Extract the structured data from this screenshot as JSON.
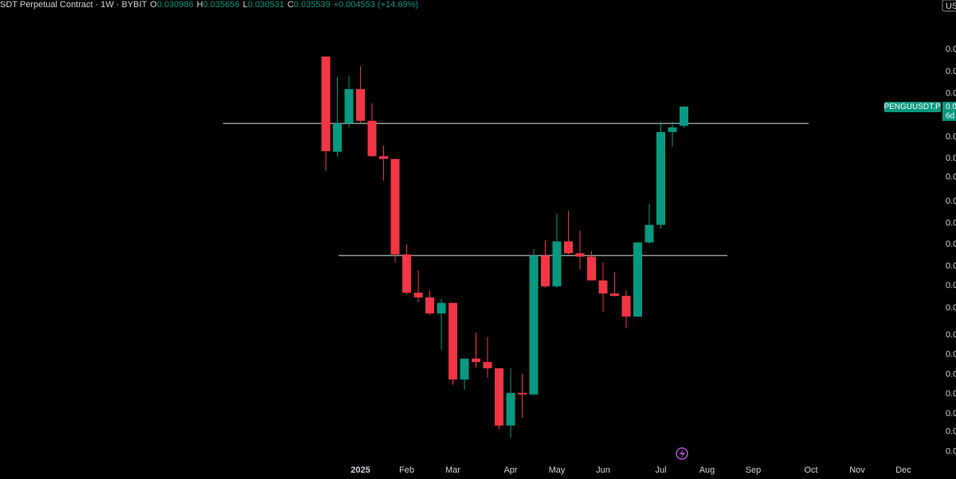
{
  "chart_data": {
    "type": "candlestick",
    "title": "SDT Perpetual Contract · 1W · BYBIT",
    "ohlc_labels": [
      "O",
      "H",
      "L",
      "C"
    ],
    "change_label": "+0.004553 (+14.69%)",
    "currency": "US",
    "symbol": "PENGUUSDT.P",
    "price_label": "0.0",
    "countdown": "6d",
    "log_scale": true,
    "up_color": "#089981",
    "down_color": "#f23645",
    "line_color": "#e0e0e0",
    "categories": [
      null,
      null,
      null,
      "2025",
      null,
      null,
      null,
      "Feb",
      null,
      null,
      null,
      "Mar",
      null,
      null,
      null,
      null,
      "Apr",
      null,
      null,
      null,
      "May",
      null,
      null,
      null,
      "Jun",
      null,
      null,
      null,
      null,
      "Jul",
      null,
      null,
      null,
      "Aug",
      null,
      null,
      null,
      "Sep",
      null,
      null,
      null,
      null,
      "Oct",
      null,
      null,
      null,
      "Nov",
      null,
      null,
      null,
      "Dec"
    ],
    "open": [
      0.0509,
      0.0257,
      0.0315,
      0.0403,
      0.0321,
      0.0249,
      0.0244,
      0.0123,
      0.00934,
      0.00903,
      0.00805,
      0.00868,
      0.00501,
      0.00582,
      0.00568,
      0.00543,
      0.0036,
      0.00455,
      0.0045,
      0.0122,
      0.00978,
      0.0135,
      0.0124,
      0.0121,
      0.0102,
      0.00929,
      0.00913,
      0.00787,
      0.0134,
      0.0152,
      0.0296,
      0.030986,
      null,
      null,
      null,
      null,
      null,
      null,
      null,
      null,
      null,
      null,
      null,
      null,
      null,
      null,
      null,
      null,
      null,
      null,
      null
    ],
    "high": [
      0.0509,
      0.0439,
      0.0444,
      0.0475,
      0.0364,
      0.0269,
      0.0244,
      0.0132,
      0.01097,
      0.0095,
      0.00892,
      0.00868,
      0.00582,
      0.00702,
      0.00679,
      0.00543,
      0.00543,
      0.00521,
      0.0128,
      0.0136,
      0.0165,
      0.0168,
      0.0146,
      0.0126,
      0.0116,
      0.01084,
      0.0095,
      0.0134,
      0.0177,
      0.0319,
      0.0319,
      0.035656,
      null,
      null,
      null,
      null,
      null,
      null,
      null,
      null,
      null,
      null,
      null,
      null,
      null,
      null,
      null,
      null,
      null,
      null,
      null
    ],
    "low": [
      0.0224,
      0.0248,
      0.0306,
      0.0315,
      0.0248,
      0.0209,
      0.0116,
      0.00923,
      0.00872,
      0.00796,
      0.0062,
      0.00482,
      0.00465,
      0.00546,
      0.00507,
      0.0035,
      0.0033,
      0.00381,
      0.00447,
      0.00967,
      0.00967,
      0.0123,
      0.011,
      0.0102,
      0.00815,
      0.00908,
      0.00723,
      0.00787,
      0.0133,
      0.0148,
      0.0267,
      0.030531,
      null,
      null,
      null,
      null,
      null,
      null,
      null,
      null,
      null,
      null,
      null,
      null,
      null,
      null,
      null,
      null,
      null,
      null,
      null
    ],
    "close": [
      0.0258,
      0.0315,
      0.0403,
      0.0321,
      0.0249,
      0.0244,
      0.0123,
      0.00934,
      0.00903,
      0.00805,
      0.00868,
      0.00501,
      0.00582,
      0.00568,
      0.00543,
      0.0036,
      0.00455,
      0.0045,
      0.0122,
      0.00978,
      0.0135,
      0.0124,
      0.0121,
      0.0102,
      0.00929,
      0.00913,
      0.00787,
      0.0134,
      0.0152,
      0.0296,
      0.0306,
      0.035539,
      null,
      null,
      null,
      null,
      null,
      null,
      null,
      null,
      null,
      null,
      null,
      null,
      null,
      null,
      null,
      null,
      null,
      null,
      null
    ],
    "hlines": [
      0.0315,
      0.0122
    ],
    "ylim": [
      0.00278,
      0.0764
    ],
    "yticks": [
      {
        "value": 0.0536,
        "label": "0.0"
      },
      {
        "value": 0.0457,
        "label": "0.0"
      },
      {
        "value": 0.039,
        "label": "0.0"
      },
      {
        "value": 0.0286,
        "label": "0.0"
      },
      {
        "value": 0.0245,
        "label": "0.0"
      },
      {
        "value": 0.0214,
        "label": "0.0"
      },
      {
        "value": 0.018,
        "label": "0.0"
      },
      {
        "value": 0.0154,
        "label": "0.0"
      },
      {
        "value": 0.0132,
        "label": "0.0"
      },
      {
        "value": 0.0113,
        "label": "0.0"
      },
      {
        "value": 0.00983,
        "label": "0.0"
      },
      {
        "value": 0.00838,
        "label": "0.0"
      },
      {
        "value": 0.0069,
        "label": "0.0"
      },
      {
        "value": 0.00599,
        "label": "0.0"
      },
      {
        "value": 0.00519,
        "label": "0.0"
      },
      {
        "value": 0.00452,
        "label": "0.0"
      },
      {
        "value": 0.00392,
        "label": "0.0"
      },
      {
        "value": 0.00344,
        "label": "0.0"
      },
      {
        "value": 0.00298,
        "label": "0.0"
      }
    ]
  }
}
